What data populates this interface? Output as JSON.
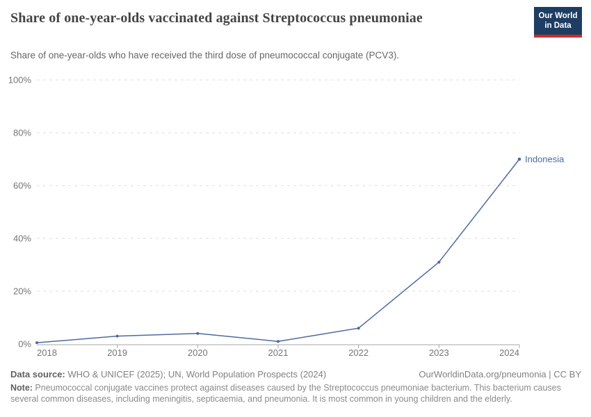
{
  "header": {
    "title": "Share of one-year-olds vaccinated against Streptococcus pneumoniae",
    "subtitle": "Share of one-year-olds who have received the third dose of pneumococcal conjugate (PCV3).",
    "logo": {
      "line1": "Our World",
      "line2": "in Data"
    }
  },
  "chart_data": {
    "type": "line",
    "title": "Share of one-year-olds vaccinated against Streptococcus pneumoniae",
    "x": [
      2018,
      2019,
      2020,
      2021,
      2022,
      2023,
      2024
    ],
    "series": [
      {
        "name": "Indonesia",
        "values": [
          0.5,
          3,
          4,
          1,
          6,
          31,
          70
        ],
        "color": "#4c6a9c"
      }
    ],
    "ylim": [
      0,
      100
    ],
    "y_ticks": [
      0,
      20,
      40,
      60,
      80,
      100
    ],
    "y_tick_suffix": "%",
    "grid": "horizontal-dashed",
    "legend_position": "end-of-line-label",
    "xlabel": "",
    "ylabel": ""
  },
  "footer": {
    "datasource_label": "Data source:",
    "datasource_text": " WHO & UNICEF (2025); UN, World Population Prospects (2024)",
    "link_text": "OurWorldinData.org/pneumonia | CC BY",
    "note_label": "Note:",
    "note_text": " Pneumococcal conjugate vaccines protect against diseases caused by the Streptococcus pneumoniae bacterium. This bacterium causes several common diseases, including meningitis, septicaemia, and pneumonia. It is most common in young children and the elderly."
  },
  "colors": {
    "accent_line": "#4c6a9c",
    "grid": "#dddddd",
    "axis": "#a5a5a5",
    "tick_label": "#757575",
    "logo_bg": "#1d3d63",
    "logo_red": "#d42b21"
  }
}
